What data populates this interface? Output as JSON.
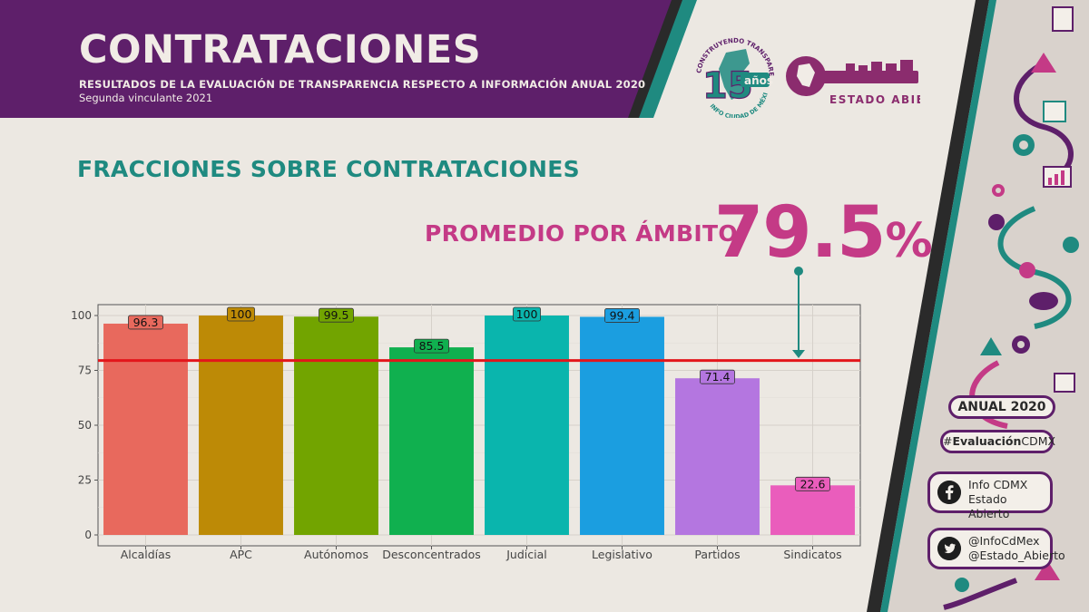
{
  "header": {
    "title": "CONTRATACIONES",
    "subtitle": "RESULTADOS DE LA EVALUACIÓN DE TRANSPARENCIA RESPECTO A INFORMACIÓN ANUAL 2020",
    "subtitle2": "Segunda vinculante 2021"
  },
  "logos": {
    "anniversary_number": "15",
    "anniversary_word": "años",
    "anniversary_arc_top": "CONSTRUYENDO TRANSPARENCIA",
    "anniversary_arc_bottom": "INFO CIUDAD DE MÉXICO",
    "estado_abierto": "ESTADO ABIERTO"
  },
  "section_title": "FRACCIONES SOBRE CONTRATACIONES",
  "average": {
    "label": "PROMEDIO POR ÁMBITO:",
    "value": "79.5",
    "unit": "%"
  },
  "sidebar": {
    "anual": "ANUAL 2020",
    "hashtag_prefix": "#",
    "hashtag_bold": "Evaluación",
    "hashtag_rest": "CDMX",
    "facebook_line1": "Info CDMX",
    "facebook_line2": "Estado Abierto",
    "twitter_line1": "@InfoCdMex",
    "twitter_line2": "@Estado_Abierto"
  },
  "colors": {
    "purple": "#5e1f6a",
    "teal": "#1f8a80",
    "magenta": "#c43a86",
    "reference_line": "#e3161b"
  },
  "chart_data": {
    "type": "bar",
    "categories": [
      "Alcaldías",
      "APC",
      "Autónomos",
      "Desconcentrados",
      "Judicial",
      "Legislativo",
      "Partidos",
      "Sindicatos"
    ],
    "values": [
      96.3,
      100,
      99.5,
      85.5,
      100,
      99.4,
      71.4,
      22.6
    ],
    "value_labels": [
      "96.3",
      "100",
      "99.5",
      "85.5",
      "100",
      "99.4",
      "71.4",
      "22.6"
    ],
    "bar_colors": [
      "#e8695d",
      "#bd8a06",
      "#72a400",
      "#10b04f",
      "#0ab5ad",
      "#1b9ee0",
      "#b476e0",
      "#ea5dbc"
    ],
    "ylim": [
      0,
      100
    ],
    "yticks": [
      0,
      25,
      50,
      75,
      100
    ],
    "reference_line": 79.5,
    "grid": true,
    "xlabel": "",
    "ylabel": ""
  }
}
